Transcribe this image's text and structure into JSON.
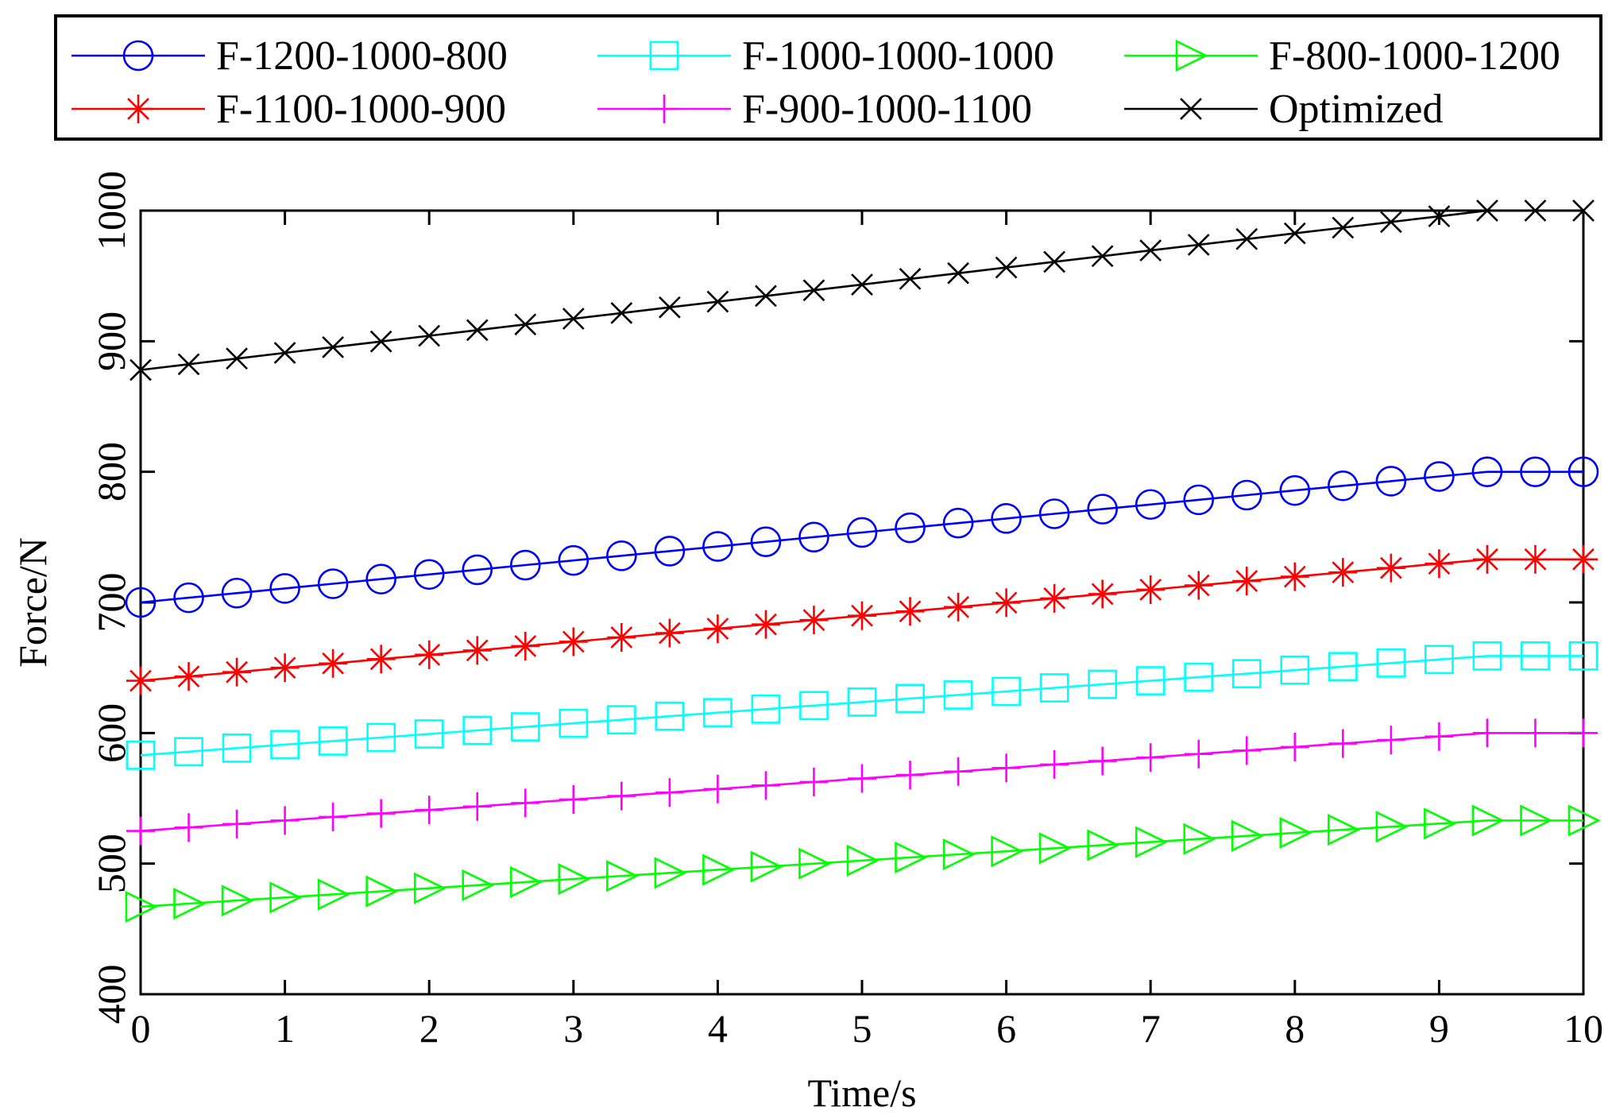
{
  "chart_data": {
    "type": "line",
    "title": "",
    "xlabel": "Time/s",
    "ylabel": "Force/N",
    "xlim": [
      0,
      10
    ],
    "ylim": [
      400,
      1000
    ],
    "xticks": [
      0,
      1,
      2,
      3,
      4,
      5,
      6,
      7,
      8,
      9,
      10
    ],
    "yticks": [
      400,
      500,
      600,
      700,
      800,
      900,
      1000
    ],
    "grid": false,
    "legend_position": "top",
    "series": [
      {
        "name": "F-1200-1000-800",
        "color": "#0000ff",
        "marker": "circle",
        "start": 700,
        "end": 800
      },
      {
        "name": "F-1000-1000-1000",
        "color": "#00ffff",
        "marker": "square",
        "start": 583,
        "end": 659
      },
      {
        "name": "F-800-1000-1200",
        "color": "#00ff00",
        "marker": "triangle-right",
        "start": 467,
        "end": 533
      },
      {
        "name": "F-1100-1000-900",
        "color": "#ff0000",
        "marker": "asterisk",
        "start": 640,
        "end": 733
      },
      {
        "name": "F-900-1000-1100",
        "color": "#ff00ff",
        "marker": "plus",
        "start": 525,
        "end": 600
      },
      {
        "name": "Optimized",
        "color": "#000000",
        "marker": "x",
        "start": 878,
        "end": 1000
      }
    ],
    "x_samples": "31 evenly spaced points from 0 to 10 s; linear ramp from start to end value reaching the end value at t = 9.33 s and holding constant to 10 s"
  }
}
